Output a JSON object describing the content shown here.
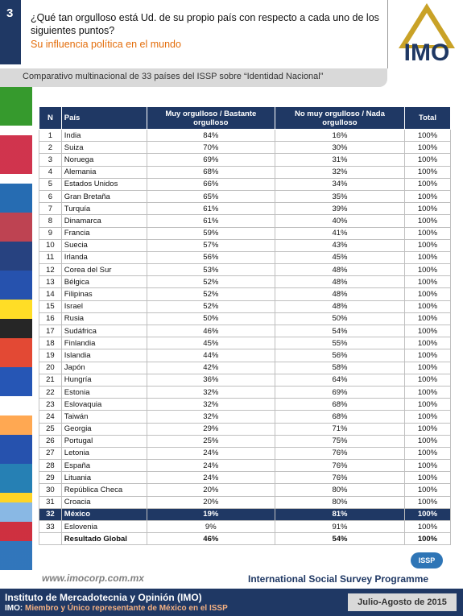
{
  "header": {
    "number": "3",
    "question": "¿Qué tan orgulloso está Ud. de su propio país con respecto a cada uno de los siguientes puntos?",
    "subtitle": "Su influencia política en el mundo",
    "logo": "IMO"
  },
  "subheader": "Comparativo multinacional de 33 países del ISSP sobre “Identidad Nacional”",
  "table": {
    "columns": [
      "N",
      "País",
      "Muy orgulloso / Bastante orgulloso",
      "No muy orgulloso / Nada orgulloso",
      "Total"
    ],
    "rows": [
      [
        "1",
        "India",
        "84%",
        "16%",
        "100%"
      ],
      [
        "2",
        "Suiza",
        "70%",
        "30%",
        "100%"
      ],
      [
        "3",
        "Noruega",
        "69%",
        "31%",
        "100%"
      ],
      [
        "4",
        "Alemania",
        "68%",
        "32%",
        "100%"
      ],
      [
        "5",
        "Estados Unidos",
        "66%",
        "34%",
        "100%"
      ],
      [
        "6",
        "Gran Bretaña",
        "65%",
        "35%",
        "100%"
      ],
      [
        "7",
        "Turquía",
        "61%",
        "39%",
        "100%"
      ],
      [
        "8",
        "Dinamarca",
        "61%",
        "40%",
        "100%"
      ],
      [
        "9",
        "Francia",
        "59%",
        "41%",
        "100%"
      ],
      [
        "10",
        "Suecia",
        "57%",
        "43%",
        "100%"
      ],
      [
        "11",
        "Irlanda",
        "56%",
        "45%",
        "100%"
      ],
      [
        "12",
        "Corea del Sur",
        "53%",
        "48%",
        "100%"
      ],
      [
        "13",
        "Bélgica",
        "52%",
        "48%",
        "100%"
      ],
      [
        "14",
        "Filipinas",
        "52%",
        "48%",
        "100%"
      ],
      [
        "15",
        "Israel",
        "52%",
        "48%",
        "100%"
      ],
      [
        "16",
        "Rusia",
        "50%",
        "50%",
        "100%"
      ],
      [
        "17",
        "Sudáfrica",
        "46%",
        "54%",
        "100%"
      ],
      [
        "18",
        "Finlandia",
        "45%",
        "55%",
        "100%"
      ],
      [
        "19",
        "Islandia",
        "44%",
        "56%",
        "100%"
      ],
      [
        "20",
        "Japón",
        "42%",
        "58%",
        "100%"
      ],
      [
        "21",
        "Hungría",
        "36%",
        "64%",
        "100%"
      ],
      [
        "22",
        "Estonia",
        "32%",
        "69%",
        "100%"
      ],
      [
        "23",
        "Eslovaquia",
        "32%",
        "68%",
        "100%"
      ],
      [
        "24",
        "Taiwán",
        "32%",
        "68%",
        "100%"
      ],
      [
        "25",
        "Georgia",
        "29%",
        "71%",
        "100%"
      ],
      [
        "26",
        "Portugal",
        "25%",
        "75%",
        "100%"
      ],
      [
        "27",
        "Letonia",
        "24%",
        "76%",
        "100%"
      ],
      [
        "28",
        "España",
        "24%",
        "76%",
        "100%"
      ],
      [
        "29",
        "Lituania",
        "24%",
        "76%",
        "100%"
      ],
      [
        "30",
        "República Checa",
        "20%",
        "80%",
        "100%"
      ],
      [
        "31",
        "Croacia",
        "20%",
        "80%",
        "100%"
      ],
      [
        "32",
        "México",
        "19%",
        "81%",
        "100%"
      ],
      [
        "33",
        "Eslovenia",
        "9%",
        "91%",
        "100%"
      ]
    ],
    "highlight_row": 31,
    "global": [
      "Resultado Global",
      "46%",
      "54%",
      "100%"
    ]
  },
  "footer": {
    "website": "www.imocorp.com.mx",
    "issp_logo": "ISSP",
    "issp_name": "International Social Survey Programme",
    "institute": "Instituto de Mercadotecnia y Opinión (IMO)",
    "member_prefix": "IMO:",
    "member_text": "Miembro y Único representante de México en el ISSP",
    "date": "Julio-Agosto de 2015"
  }
}
